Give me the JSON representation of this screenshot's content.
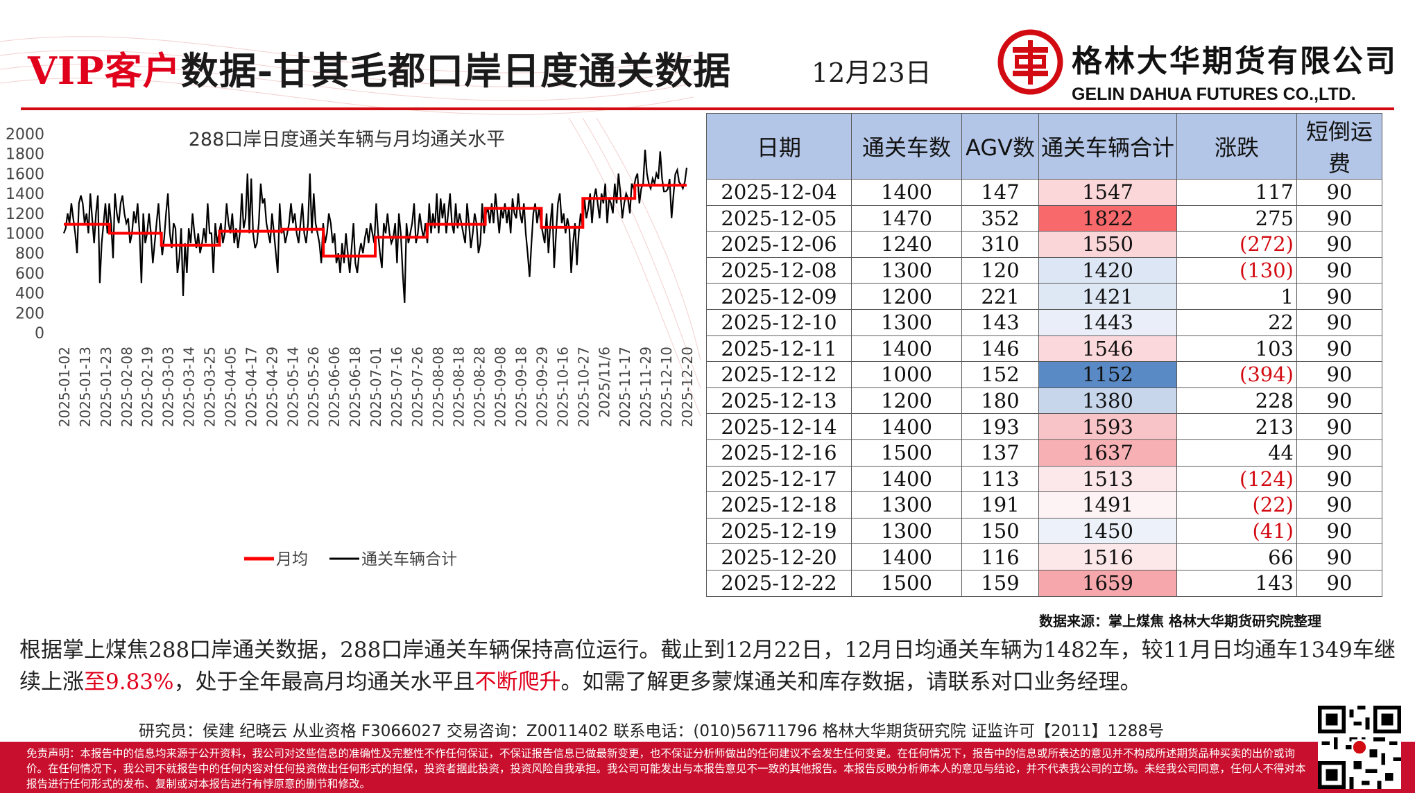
{
  "header": {
    "title_vip": "VIP客户",
    "title_main": "数据-甘其毛都口岸日度通关数据",
    "date": "12月23日",
    "company_cn": "格林大华期货有限公司",
    "company_en": "GELIN DAHUA FUTURES CO.,LTD."
  },
  "colors": {
    "brand_red": "#d20a11",
    "header_blue": "#b4c6e7",
    "monthly_line": "#ff0000",
    "daily_line": "#000000"
  },
  "chart_data": {
    "type": "line",
    "title": "288口岸日度通关车辆与月均通关水平",
    "ylim": [
      0,
      2000
    ],
    "yticks": [
      "0",
      "200",
      "400",
      "600",
      "800",
      "1000",
      "1200",
      "1400",
      "1600",
      "1800",
      "2000"
    ],
    "x_tick_labels": [
      "2025-01-02",
      "2025-01-13",
      "2025-01-23",
      "2025-02-08",
      "2025-02-19",
      "2025-03-03",
      "2025-03-14",
      "2025-03-25",
      "2025-04-05",
      "2025-04-17",
      "2025-04-29",
      "2025-05-14",
      "2025-05-26",
      "2025-06-06",
      "2025-06-18",
      "2025-07-01",
      "2025-07-16",
      "2025-07-26",
      "2025-08-08",
      "2025-08-18",
      "2025-08-28",
      "2025-09-08",
      "2025-09-18",
      "2025-09-29",
      "2025-10-16",
      "2025-10-27",
      "2025/11/6",
      "2025-11-17",
      "2025-11-29",
      "2025-12-10",
      "2025-12-20"
    ],
    "legend": [
      "月均",
      "通关车辆合计"
    ],
    "legend_position": "bottom",
    "series": [
      {
        "name": "月均",
        "steps": [
          {
            "start_tick": 0,
            "end_tick": 2.2,
            "value": 1090
          },
          {
            "start_tick": 2.2,
            "end_tick": 4.7,
            "value": 1000
          },
          {
            "start_tick": 4.7,
            "end_tick": 7.5,
            "value": 880
          },
          {
            "start_tick": 7.5,
            "end_tick": 10.5,
            "value": 1020
          },
          {
            "start_tick": 10.5,
            "end_tick": 12.5,
            "value": 1040
          },
          {
            "start_tick": 12.5,
            "end_tick": 15.0,
            "value": 770
          },
          {
            "start_tick": 15.0,
            "end_tick": 17.5,
            "value": 960
          },
          {
            "start_tick": 17.5,
            "end_tick": 20.3,
            "value": 1090
          },
          {
            "start_tick": 20.3,
            "end_tick": 23.0,
            "value": 1250
          },
          {
            "start_tick": 23.0,
            "end_tick": 25.0,
            "value": 1060
          },
          {
            "start_tick": 25.0,
            "end_tick": 27.5,
            "value": 1350
          },
          {
            "start_tick": 27.5,
            "end_tick": 30.0,
            "value": 1482
          }
        ]
      },
      {
        "name": "通关车辆合计",
        "values": [
          1000,
          1050,
          1200,
          1100,
          1300,
          1150,
          1000,
          800,
          1300,
          1380,
          1300,
          1100,
          1200,
          1000,
          1400,
          1150,
          900,
          1200,
          1380,
          500,
          900,
          1100,
          1300,
          1000,
          1300,
          1100,
          750,
          1400,
          1200,
          1100,
          1300,
          1380,
          1200,
          1100,
          1150,
          900,
          1000,
          1220,
          1100,
          1300,
          1000,
          500,
          1200,
          900,
          1000,
          1200,
          1000,
          700,
          900,
          1100,
          1300,
          1000,
          780,
          950,
          1200,
          1400,
          1000,
          850,
          1100,
          1050,
          600,
          750,
          1050,
          370,
          900,
          600,
          1050,
          900,
          1200,
          1000,
          850,
          1000,
          800,
          900,
          1050,
          900,
          1300,
          1000,
          1000,
          600,
          1100,
          900,
          1000,
          1100,
          900,
          1000,
          1300,
          1100,
          1000,
          1200,
          900,
          1050,
          850,
          1000,
          1400,
          1050,
          1150,
          1600,
          1000,
          1550,
          1000,
          850,
          900,
          1100,
          1500,
          1300,
          1350,
          1100,
          1000,
          900,
          1200,
          1000,
          800,
          600,
          1300,
          1000,
          1050,
          900,
          1000,
          1100,
          1300,
          1100,
          1200,
          1000,
          900,
          1100,
          1300,
          1000,
          900,
          1100,
          1600,
          1000,
          1400,
          1100,
          1000,
          900,
          700,
          1100,
          900,
          1000,
          1200,
          1100,
          900,
          1000,
          700,
          800,
          600,
          900,
          700,
          1000,
          800,
          600,
          850,
          1100,
          700,
          600,
          800,
          900,
          800,
          950,
          1050,
          900,
          1100,
          1000,
          900,
          1300,
          1000,
          800,
          650,
          1100,
          1000,
          1200,
          1000,
          900,
          950,
          1100,
          700,
          1200,
          1000,
          600,
          300,
          1100,
          900,
          1000,
          1100,
          1300,
          900,
          1000,
          1200,
          1050,
          950,
          1100,
          900,
          1300,
          1000,
          1200,
          1050,
          1400,
          1000,
          1350,
          1150,
          1300,
          1000,
          1200,
          1400,
          1100,
          1000,
          1300,
          1050,
          1200,
          1100,
          1000,
          900,
          1300,
          1100,
          850,
          1000,
          1200,
          1100,
          800,
          900,
          1300,
          1000,
          1200,
          1250,
          1100,
          1300,
          1100,
          1400,
          1200,
          1000,
          1250,
          1150,
          1300,
          1100,
          1250,
          1000,
          1350,
          1200,
          1150,
          1400,
          1200,
          1100,
          1300,
          1000,
          800,
          560,
          900,
          1200,
          1300,
          1100,
          1250,
          1100,
          1000,
          900,
          1200,
          800,
          1100,
          1300,
          650,
          1000,
          1300,
          1400,
          1100,
          1200,
          1000,
          1150,
          1050,
          600,
          900,
          1100,
          680,
          1000,
          1200,
          1050,
          1350,
          1150,
          1250,
          1400,
          1100,
          1350,
          1450,
          1300,
          1150,
          1400,
          1300,
          1500,
          1100,
          1350,
          1300,
          1200,
          1500,
          1300,
          1600,
          1400,
          1150,
          1300,
          1400,
          1350,
          1200,
          1500,
          1450,
          1550,
          1600,
          1300,
          1450,
          1500,
          1840,
          1600,
          1500,
          1450,
          1550,
          1500,
          1600,
          1547,
          1822,
          1550,
          1420,
          1421,
          1443,
          1546,
          1152,
          1380,
          1593,
          1637,
          1513,
          1491,
          1450,
          1516,
          1659
        ]
      }
    ]
  },
  "table": {
    "headers": [
      "日期",
      "通关车数",
      "AGV数",
      "通关车辆合计",
      "涨跌",
      "短倒运费"
    ],
    "rows": [
      {
        "date": "2025-12-04",
        "cars": "1400",
        "agv": "147",
        "total": "1547",
        "change": "117",
        "neg": false,
        "freight": "90",
        "heat": "#fbd7da"
      },
      {
        "date": "2025-12-05",
        "cars": "1470",
        "agv": "352",
        "total": "1822",
        "change": "275",
        "neg": false,
        "freight": "90",
        "heat": "#f8696b"
      },
      {
        "date": "2025-12-06",
        "cars": "1240",
        "agv": "310",
        "total": "1550",
        "change": "(272)",
        "neg": true,
        "freight": "90",
        "heat": "#fbd6d9"
      },
      {
        "date": "2025-12-08",
        "cars": "1300",
        "agv": "120",
        "total": "1420",
        "change": "(130)",
        "neg": true,
        "freight": "90",
        "heat": "#dde6f4"
      },
      {
        "date": "2025-12-09",
        "cars": "1200",
        "agv": "221",
        "total": "1421",
        "change": "1",
        "neg": false,
        "freight": "90",
        "heat": "#dee7f4"
      },
      {
        "date": "2025-12-10",
        "cars": "1300",
        "agv": "143",
        "total": "1443",
        "change": "22",
        "neg": false,
        "freight": "90",
        "heat": "#e9eef8"
      },
      {
        "date": "2025-12-11",
        "cars": "1400",
        "agv": "146",
        "total": "1546",
        "change": "103",
        "neg": false,
        "freight": "90",
        "heat": "#fbd8db"
      },
      {
        "date": "2025-12-12",
        "cars": "1000",
        "agv": "152",
        "total": "1152",
        "change": "(394)",
        "neg": true,
        "freight": "90",
        "heat": "#5a8ac6"
      },
      {
        "date": "2025-12-13",
        "cars": "1200",
        "agv": "180",
        "total": "1380",
        "change": "228",
        "neg": false,
        "freight": "90",
        "heat": "#c8d6ec"
      },
      {
        "date": "2025-12-14",
        "cars": "1400",
        "agv": "193",
        "total": "1593",
        "change": "213",
        "neg": false,
        "freight": "90",
        "heat": "#f9c4c7"
      },
      {
        "date": "2025-12-16",
        "cars": "1500",
        "agv": "137",
        "total": "1637",
        "change": "44",
        "neg": false,
        "freight": "90",
        "heat": "#f7b1b4"
      },
      {
        "date": "2025-12-17",
        "cars": "1400",
        "agv": "113",
        "total": "1513",
        "change": "(124)",
        "neg": true,
        "freight": "90",
        "heat": "#fce8ea"
      },
      {
        "date": "2025-12-18",
        "cars": "1300",
        "agv": "191",
        "total": "1491",
        "change": "(22)",
        "neg": true,
        "freight": "90",
        "heat": "#fdf3f4"
      },
      {
        "date": "2025-12-19",
        "cars": "1300",
        "agv": "150",
        "total": "1450",
        "change": "(41)",
        "neg": true,
        "freight": "90",
        "heat": "#edf1f9"
      },
      {
        "date": "2025-12-20",
        "cars": "1400",
        "agv": "116",
        "total": "1516",
        "change": "66",
        "neg": false,
        "freight": "90",
        "heat": "#fce7e9"
      },
      {
        "date": "2025-12-22",
        "cars": "1500",
        "agv": "159",
        "total": "1659",
        "change": "143",
        "neg": false,
        "freight": "90",
        "heat": "#f6a7ab"
      }
    ]
  },
  "source": "数据来源：掌上煤焦  格林大华期货研究院整理",
  "summary": {
    "part1": "根据掌上煤焦288口岸通关数据，288口岸通关车辆保持高位运行。截止到12月22日，12月日均通关车辆为1482车，较11月日均通车1349车继续上涨",
    "hl1": "至9.83%",
    "part2": "，处于全年最高月均通关水平且",
    "hl2": "不断爬升",
    "part3": "。如需了解更多蒙煤通关和库存数据，请联系对口业务经理。"
  },
  "footer": "研究员：侯建 纪晓云    从业资格 F3066027    交易咨询：Z0011402    联系电话：(010)56711796         格林大华期货研究院  证监许可【2011】1288号",
  "disclaimer": "免责声明：本报告中的信息均来源于公开资料，我公司对这些信息的准确性及完整性不作任何保证，不保证报告信息已做最新变更，也不保证分析师做出的任何建议不会发生任何变更。在任何情况下，报告中的信息或所表达的意见并不构成所述期货品种买卖的出价或询价。在任何情况下，我公司不就报告中的任何内容对任何投资做出任何形式的担保，投资者据此投资，投资风险自我承担。我公司可能发出与本报告意见不一致的其他报告。本报告反映分析师本人的意见与结论，并不代表我公司的立场。未经我公司同意，任何人不得对本报告进行任何形式的发布、复制或对本报告进行有悖原意的删节和修改。"
}
